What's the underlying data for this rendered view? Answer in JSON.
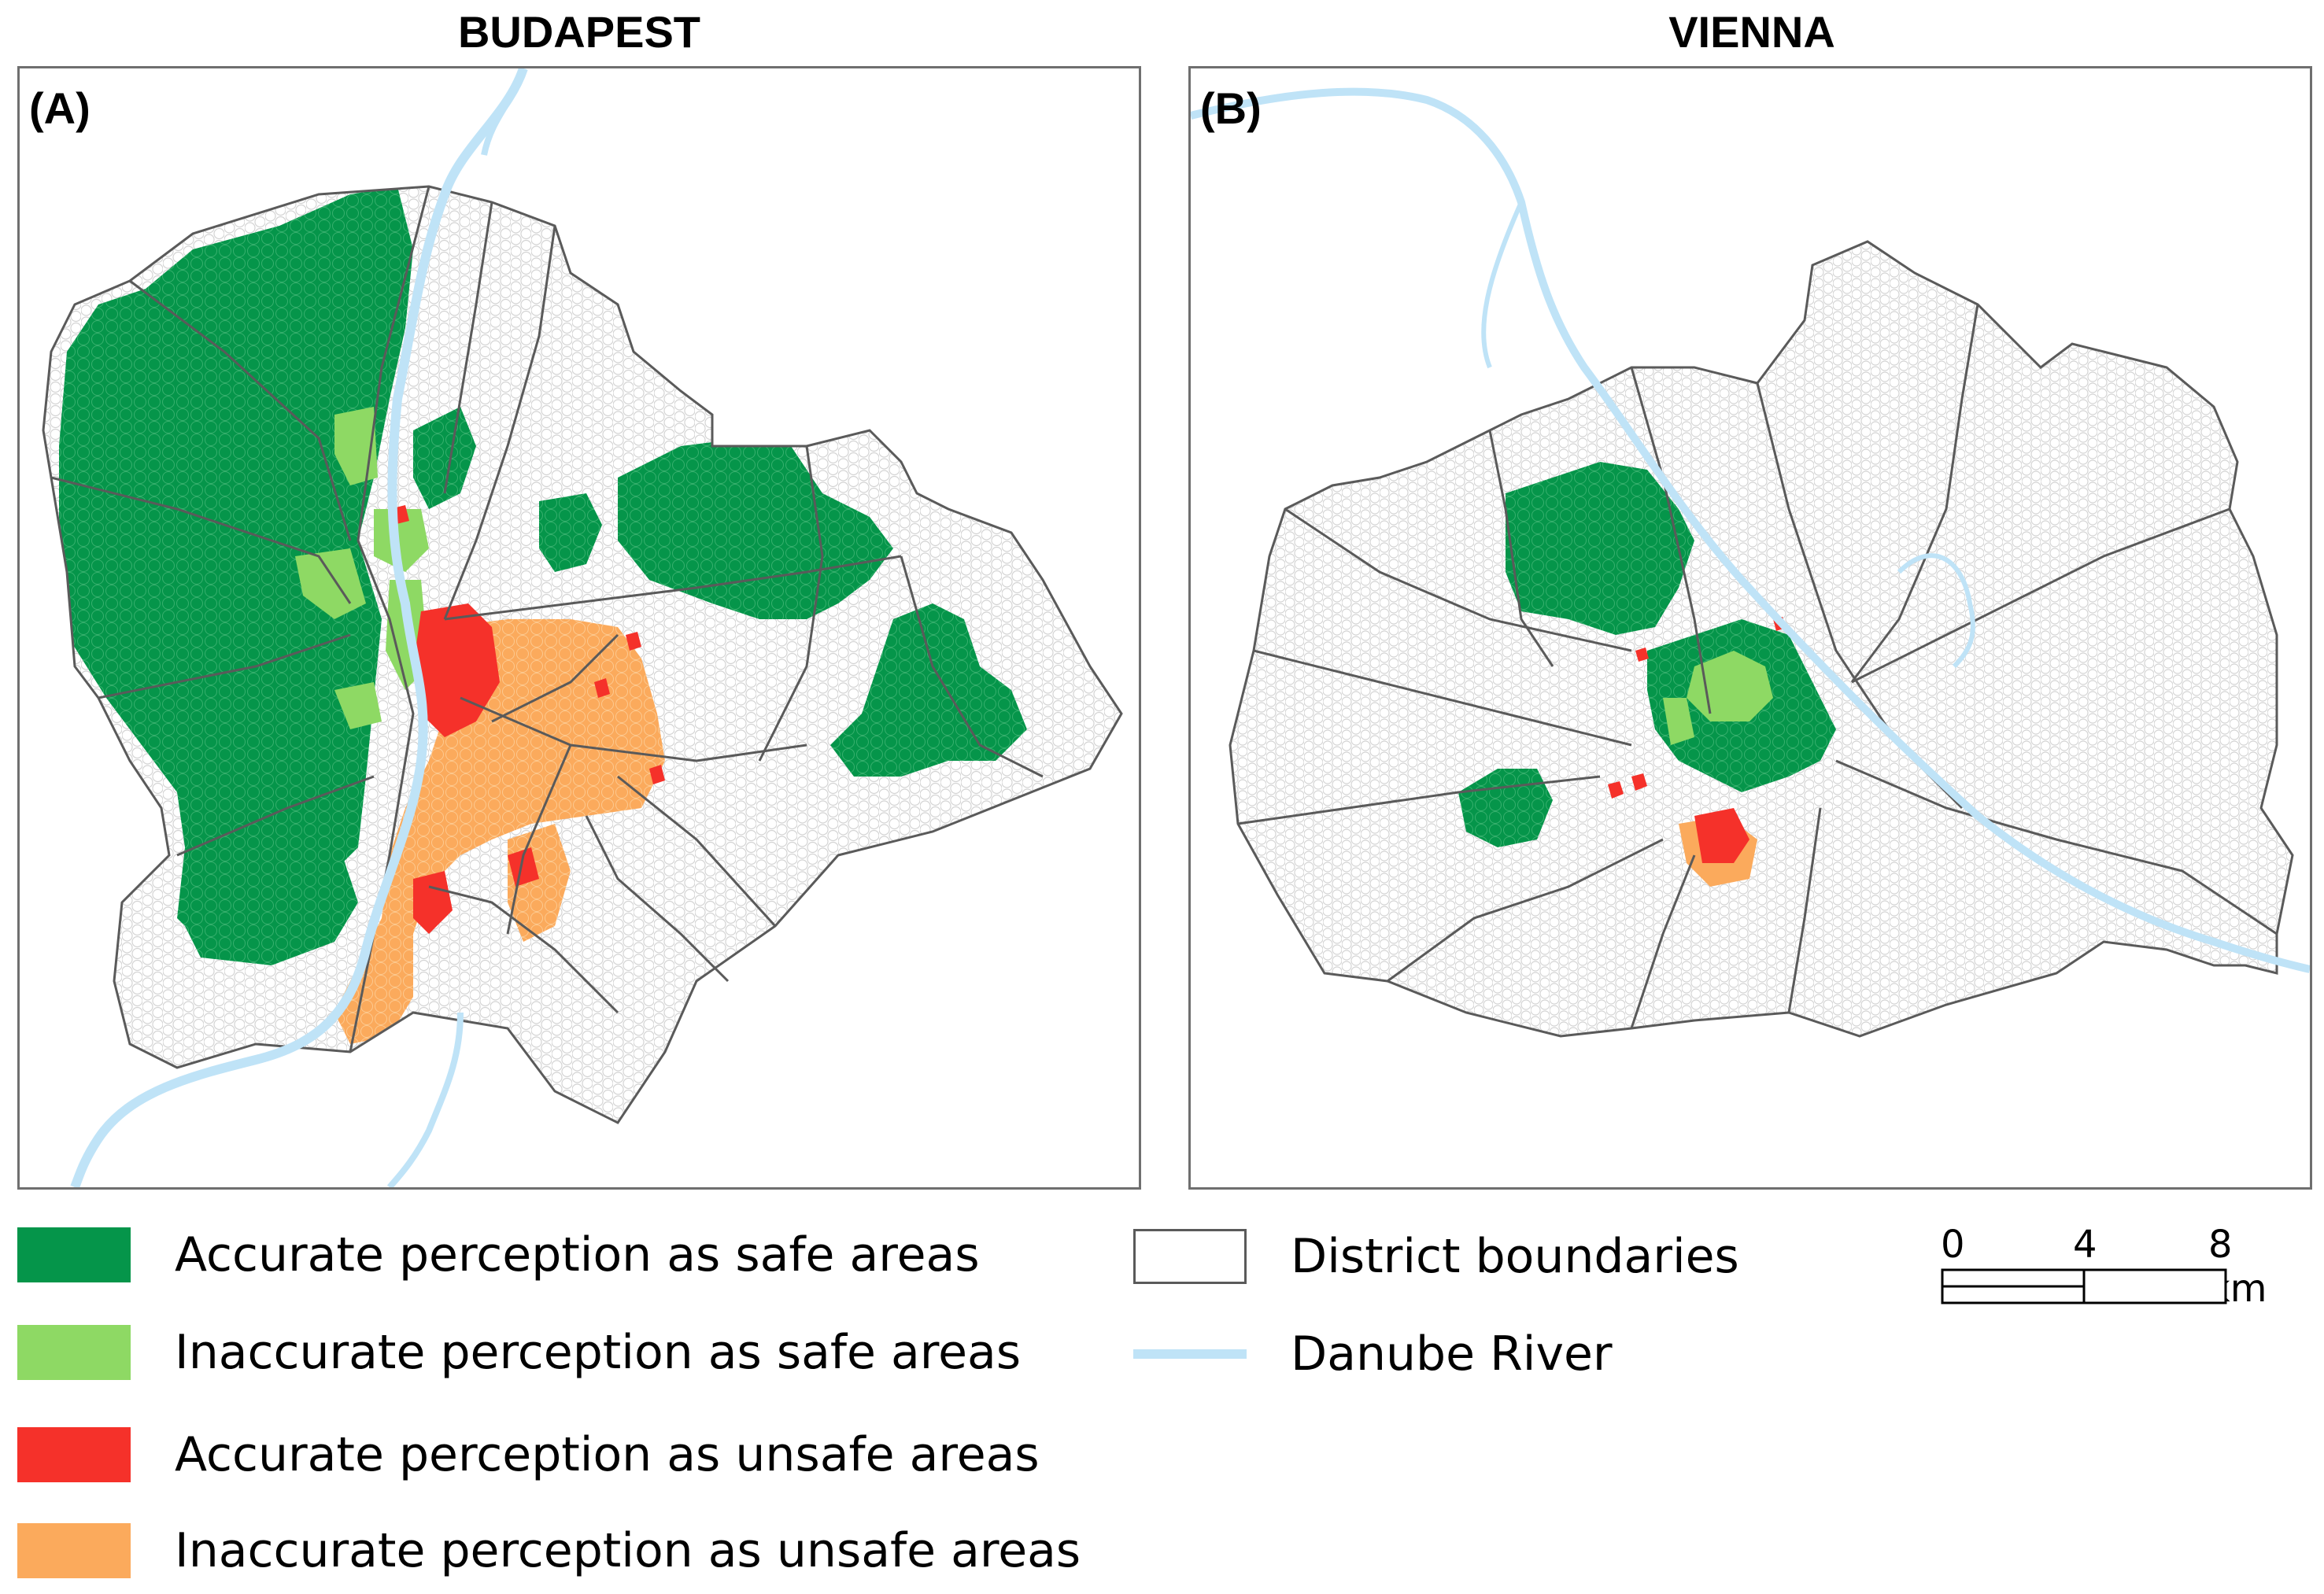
{
  "panels": [
    {
      "title": "BUDAPEST",
      "label": "(A)"
    },
    {
      "title": "VIENNA",
      "label": "(B)"
    }
  ],
  "legend": [
    {
      "text": "Accurate perception as safe areas",
      "color": "#05954a"
    },
    {
      "text": "Inaccurate perception as safe areas",
      "color": "#8ed964"
    },
    {
      "text": "Accurate perception as unsafe areas",
      "color": "#f5312a"
    },
    {
      "text": "Inaccurate perception as unsafe areas",
      "color": "#fbaa5c"
    },
    {
      "text": "District boundaries",
      "color": "#ffffff"
    },
    {
      "text": "Danube River",
      "color": "#bfe3f7"
    }
  ],
  "scale_bar": {
    "labels": [
      "0",
      "4",
      "8 km"
    ]
  },
  "colors": {
    "accurate_safe": "#05954a",
    "inaccurate_safe": "#8ed964",
    "accurate_unsafe": "#f5312a",
    "inaccurate_unsafe": "#fbaa5c",
    "river": "#bfe3f7",
    "boundary": "#5a5a5a"
  }
}
